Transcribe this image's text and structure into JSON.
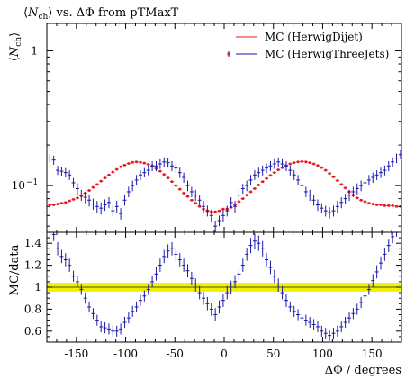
{
  "title": "⟨N_ch⟩ vs. ΔΦ from pTMaxT",
  "title_parts": {
    "lang": "⟨",
    "sym": "N",
    "sub": "ch",
    "rang": "⟩",
    "rest": " vs. ΔΦ from pTMaxT"
  },
  "ylabel_parts": {
    "lang": "⟨",
    "sym": "N",
    "sub": "ch",
    "rang": "⟩"
  },
  "ratio_ylabel": "MC/data",
  "xlabel": "ΔΦ / degrees",
  "colors": {
    "mc1": "#e8151a",
    "mc2": "#1a1aa8",
    "band": "#f0f000",
    "band_line": "#555500"
  },
  "chart_data": [
    {
      "type": "scatter",
      "panel": "main",
      "log_y": true,
      "xlim": [
        -180,
        180
      ],
      "ylim": [
        0.045,
        1.6
      ],
      "x_ticks": [
        -150,
        -100,
        -50,
        0,
        50,
        100,
        150
      ],
      "y_tick_labels": [
        {
          "value": 1,
          "text": "1"
        },
        {
          "value": 0.1,
          "text": "10^-1"
        }
      ],
      "legend_position": "top-right",
      "series": [
        {
          "name": "MC (HerwigDijet)",
          "style": "red-line-markers",
          "x": [
            -177,
            -173,
            -169,
            -165,
            -161,
            -157,
            -153,
            -149,
            -145,
            -141,
            -137,
            -133,
            -129,
            -125,
            -121,
            -117,
            -113,
            -109,
            -105,
            -101,
            -97,
            -93,
            -89,
            -85,
            -81,
            -77,
            -73,
            -69,
            -65,
            -61,
            -57,
            -53,
            -49,
            -45,
            -41,
            -37,
            -33,
            -29,
            -25,
            -21,
            -17,
            -13,
            -9,
            -5,
            -1,
            3,
            7,
            11,
            15,
            19,
            23,
            27,
            31,
            35,
            39,
            43,
            47,
            51,
            55,
            59,
            63,
            67,
            71,
            75,
            79,
            83,
            87,
            91,
            95,
            99,
            103,
            107,
            111,
            115,
            119,
            123,
            127,
            131,
            135,
            139,
            143,
            147,
            151,
            155,
            159,
            163,
            167,
            171,
            175,
            179
          ],
          "y": [
            0.072,
            0.072,
            0.073,
            0.074,
            0.075,
            0.077,
            0.079,
            0.081,
            0.084,
            0.088,
            0.092,
            0.097,
            0.102,
            0.108,
            0.114,
            0.12,
            0.126,
            0.132,
            0.138,
            0.142,
            0.146,
            0.149,
            0.15,
            0.149,
            0.147,
            0.144,
            0.14,
            0.134,
            0.128,
            0.121,
            0.114,
            0.107,
            0.1,
            0.094,
            0.088,
            0.083,
            0.078,
            0.074,
            0.07,
            0.067,
            0.065,
            0.064,
            0.064,
            0.065,
            0.067,
            0.067,
            0.069,
            0.072,
            0.076,
            0.08,
            0.085,
            0.09,
            0.095,
            0.101,
            0.107,
            0.113,
            0.119,
            0.125,
            0.131,
            0.136,
            0.141,
            0.145,
            0.148,
            0.15,
            0.151,
            0.15,
            0.148,
            0.145,
            0.141,
            0.136,
            0.13,
            0.123,
            0.116,
            0.109,
            0.102,
            0.096,
            0.09,
            0.085,
            0.081,
            0.078,
            0.076,
            0.074,
            0.073,
            0.072,
            0.072,
            0.071,
            0.071,
            0.071,
            0.07,
            0.07
          ]
        },
        {
          "name": "MC (HerwigThreeJets)",
          "style": "blue-error-bars",
          "x": [
            -177,
            -173,
            -169,
            -165,
            -161,
            -157,
            -153,
            -149,
            -145,
            -141,
            -137,
            -133,
            -129,
            -125,
            -121,
            -117,
            -113,
            -109,
            -105,
            -101,
            -97,
            -93,
            -89,
            -85,
            -81,
            -77,
            -73,
            -69,
            -65,
            -61,
            -57,
            -53,
            -49,
            -45,
            -41,
            -37,
            -33,
            -29,
            -25,
            -21,
            -17,
            -13,
            -9,
            -5,
            -1,
            3,
            7,
            11,
            15,
            19,
            23,
            27,
            31,
            35,
            39,
            43,
            47,
            51,
            55,
            59,
            63,
            67,
            71,
            75,
            79,
            83,
            87,
            91,
            95,
            99,
            103,
            107,
            111,
            115,
            119,
            123,
            127,
            131,
            135,
            139,
            143,
            147,
            151,
            155,
            159,
            163,
            167,
            171,
            175,
            179
          ],
          "y": [
            0.16,
            0.155,
            0.13,
            0.128,
            0.125,
            0.12,
            0.105,
            0.095,
            0.085,
            0.082,
            0.078,
            0.073,
            0.07,
            0.068,
            0.072,
            0.075,
            0.065,
            0.07,
            0.062,
            0.078,
            0.09,
            0.1,
            0.11,
            0.12,
            0.125,
            0.13,
            0.14,
            0.14,
            0.145,
            0.15,
            0.148,
            0.14,
            0.135,
            0.125,
            0.115,
            0.1,
            0.09,
            0.085,
            0.078,
            0.07,
            0.065,
            0.06,
            0.05,
            0.055,
            0.06,
            0.065,
            0.075,
            0.07,
            0.085,
            0.095,
            0.1,
            0.11,
            0.12,
            0.125,
            0.13,
            0.135,
            0.14,
            0.145,
            0.15,
            0.145,
            0.14,
            0.13,
            0.12,
            0.11,
            0.1,
            0.09,
            0.085,
            0.078,
            0.072,
            0.068,
            0.065,
            0.063,
            0.065,
            0.07,
            0.075,
            0.08,
            0.085,
            0.09,
            0.095,
            0.1,
            0.105,
            0.11,
            0.115,
            0.12,
            0.125,
            0.13,
            0.14,
            0.15,
            0.16,
            0.17
          ],
          "err": [
            0.012,
            0.012,
            0.01,
            0.01,
            0.01,
            0.01,
            0.009,
            0.009,
            0.008,
            0.008,
            0.008,
            0.007,
            0.007,
            0.007,
            0.007,
            0.007,
            0.006,
            0.007,
            0.006,
            0.007,
            0.008,
            0.009,
            0.01,
            0.01,
            0.01,
            0.011,
            0.012,
            0.012,
            0.012,
            0.012,
            0.012,
            0.012,
            0.011,
            0.011,
            0.01,
            0.009,
            0.008,
            0.008,
            0.007,
            0.007,
            0.006,
            0.006,
            0.005,
            0.005,
            0.006,
            0.006,
            0.007,
            0.007,
            0.008,
            0.008,
            0.009,
            0.01,
            0.01,
            0.011,
            0.011,
            0.011,
            0.012,
            0.012,
            0.012,
            0.012,
            0.012,
            0.011,
            0.01,
            0.01,
            0.009,
            0.008,
            0.008,
            0.007,
            0.007,
            0.006,
            0.006,
            0.006,
            0.006,
            0.007,
            0.007,
            0.007,
            0.008,
            0.008,
            0.009,
            0.009,
            0.009,
            0.01,
            0.01,
            0.01,
            0.011,
            0.011,
            0.012,
            0.012,
            0.013,
            0.013
          ]
        }
      ]
    },
    {
      "type": "scatter",
      "panel": "ratio",
      "xlim": [
        -180,
        180
      ],
      "ylim": [
        0.5,
        1.5
      ],
      "x_ticks": [
        -150,
        -100,
        -50,
        0,
        50,
        100,
        150
      ],
      "y_ticks": [
        0.6,
        0.8,
        1,
        1.2,
        1.4
      ],
      "y_tick_labels": [
        "0.6",
        "0.8",
        "1",
        "1.2",
        "1.4"
      ],
      "band": [
        0.96,
        1.04
      ],
      "reference": 1,
      "series": [
        {
          "name": "MC (HerwigThreeJets)",
          "x": [
            -177,
            -173,
            -169,
            -165,
            -161,
            -157,
            -153,
            -149,
            -145,
            -141,
            -137,
            -133,
            -129,
            -125,
            -121,
            -117,
            -113,
            -109,
            -105,
            -101,
            -97,
            -93,
            -89,
            -85,
            -81,
            -77,
            -73,
            -69,
            -65,
            -61,
            -57,
            -53,
            -49,
            -45,
            -41,
            -37,
            -33,
            -29,
            -25,
            -21,
            -17,
            -13,
            -9,
            -5,
            -1,
            3,
            7,
            11,
            15,
            19,
            23,
            27,
            31,
            35,
            39,
            43,
            47,
            51,
            55,
            59,
            63,
            67,
            71,
            75,
            79,
            83,
            87,
            91,
            95,
            99,
            103,
            107,
            111,
            115,
            119,
            123,
            127,
            131,
            135,
            139,
            143,
            147,
            151,
            155,
            159,
            163,
            167,
            171,
            175,
            179
          ],
          "y": [
            1.55,
            1.48,
            1.35,
            1.28,
            1.25,
            1.2,
            1.1,
            1.05,
            0.98,
            0.9,
            0.82,
            0.76,
            0.7,
            0.64,
            0.63,
            0.62,
            0.6,
            0.6,
            0.62,
            0.68,
            0.72,
            0.78,
            0.82,
            0.88,
            0.92,
            0.98,
            1.05,
            1.12,
            1.2,
            1.28,
            1.33,
            1.35,
            1.3,
            1.25,
            1.2,
            1.15,
            1.08,
            1.02,
            0.95,
            0.9,
            0.85,
            0.8,
            0.75,
            0.82,
            0.88,
            0.95,
            1.0,
            1.05,
            1.12,
            1.2,
            1.3,
            1.38,
            1.42,
            1.4,
            1.35,
            1.25,
            1.18,
            1.1,
            1.02,
            0.95,
            0.88,
            0.82,
            0.78,
            0.75,
            0.72,
            0.7,
            0.68,
            0.66,
            0.64,
            0.6,
            0.58,
            0.56,
            0.58,
            0.6,
            0.64,
            0.68,
            0.72,
            0.76,
            0.8,
            0.86,
            0.92,
            0.98,
            1.06,
            1.14,
            1.22,
            1.3,
            1.38,
            1.46,
            1.52,
            1.58
          ],
          "err": [
            0.06,
            0.06,
            0.06,
            0.06,
            0.06,
            0.06,
            0.05,
            0.05,
            0.05,
            0.05,
            0.05,
            0.05,
            0.05,
            0.05,
            0.05,
            0.05,
            0.05,
            0.05,
            0.05,
            0.05,
            0.05,
            0.05,
            0.05,
            0.05,
            0.05,
            0.05,
            0.05,
            0.06,
            0.06,
            0.06,
            0.06,
            0.06,
            0.06,
            0.06,
            0.06,
            0.06,
            0.06,
            0.06,
            0.06,
            0.06,
            0.06,
            0.06,
            0.06,
            0.06,
            0.06,
            0.06,
            0.06,
            0.06,
            0.06,
            0.06,
            0.06,
            0.07,
            0.07,
            0.07,
            0.07,
            0.06,
            0.06,
            0.06,
            0.06,
            0.06,
            0.06,
            0.05,
            0.05,
            0.05,
            0.05,
            0.05,
            0.05,
            0.05,
            0.05,
            0.05,
            0.05,
            0.05,
            0.05,
            0.05,
            0.05,
            0.05,
            0.05,
            0.05,
            0.05,
            0.05,
            0.05,
            0.05,
            0.06,
            0.06,
            0.06,
            0.06,
            0.06,
            0.06,
            0.06,
            0.06
          ]
        }
      ]
    }
  ]
}
